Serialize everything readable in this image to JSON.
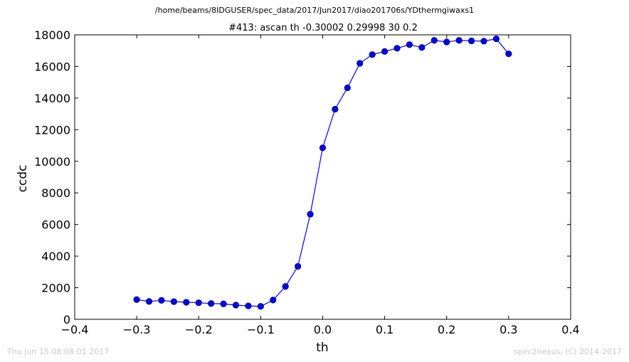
{
  "chart_data": {
    "type": "line",
    "suptitle": "/home/beams/8IDGUSER/spec_data/2017/Jun2017/diao201706s/YDthermgiwaxs1",
    "title": "#413: ascan  th -0.30002 0.29998  30 0.2",
    "xlabel": "th",
    "ylabel": "ccdc",
    "xlim": [
      -0.4,
      0.4
    ],
    "ylim": [
      0,
      18000
    ],
    "xticks": [
      -0.4,
      -0.3,
      -0.2,
      -0.1,
      0.0,
      0.1,
      0.2,
      0.3,
      0.4
    ],
    "xtick_labels": [
      "−0.4",
      "−0.3",
      "−0.2",
      "−0.1",
      "0.0",
      "0.1",
      "0.2",
      "0.3",
      "0.4"
    ],
    "yticks": [
      0,
      2000,
      4000,
      6000,
      8000,
      10000,
      12000,
      14000,
      16000,
      18000
    ],
    "ytick_labels": [
      "0",
      "2000",
      "4000",
      "6000",
      "8000",
      "10000",
      "12000",
      "14000",
      "16000",
      "18000"
    ],
    "grid": false,
    "color": "#0000ff",
    "marker": "circle",
    "series": [
      {
        "x": [
          -0.30002,
          -0.28002,
          -0.26002,
          -0.24002,
          -0.22002,
          -0.20002,
          -0.18002,
          -0.16002,
          -0.14002,
          -0.12002,
          -0.10002,
          -0.08002,
          -0.06002,
          -0.04002,
          -0.02002,
          -2e-05,
          0.01998,
          0.03998,
          0.05998,
          0.07998,
          0.09998,
          0.11998,
          0.13998,
          0.15998,
          0.17998,
          0.19998,
          0.21998,
          0.23998,
          0.25998,
          0.27998,
          0.29998
        ],
        "y": [
          1250,
          1130,
          1200,
          1120,
          1080,
          1050,
          1000,
          980,
          900,
          850,
          820,
          1220,
          2080,
          3350,
          6650,
          10850,
          13300,
          14650,
          16200,
          16750,
          16950,
          17150,
          17380,
          17200,
          17650,
          17550,
          17650,
          17620,
          17600,
          17750,
          16800
        ]
      }
    ]
  },
  "footer": {
    "timestamp": "Thu Jun 15 08:08:01 2017",
    "credit": "spec2nexus, (C) 2014-2017"
  }
}
